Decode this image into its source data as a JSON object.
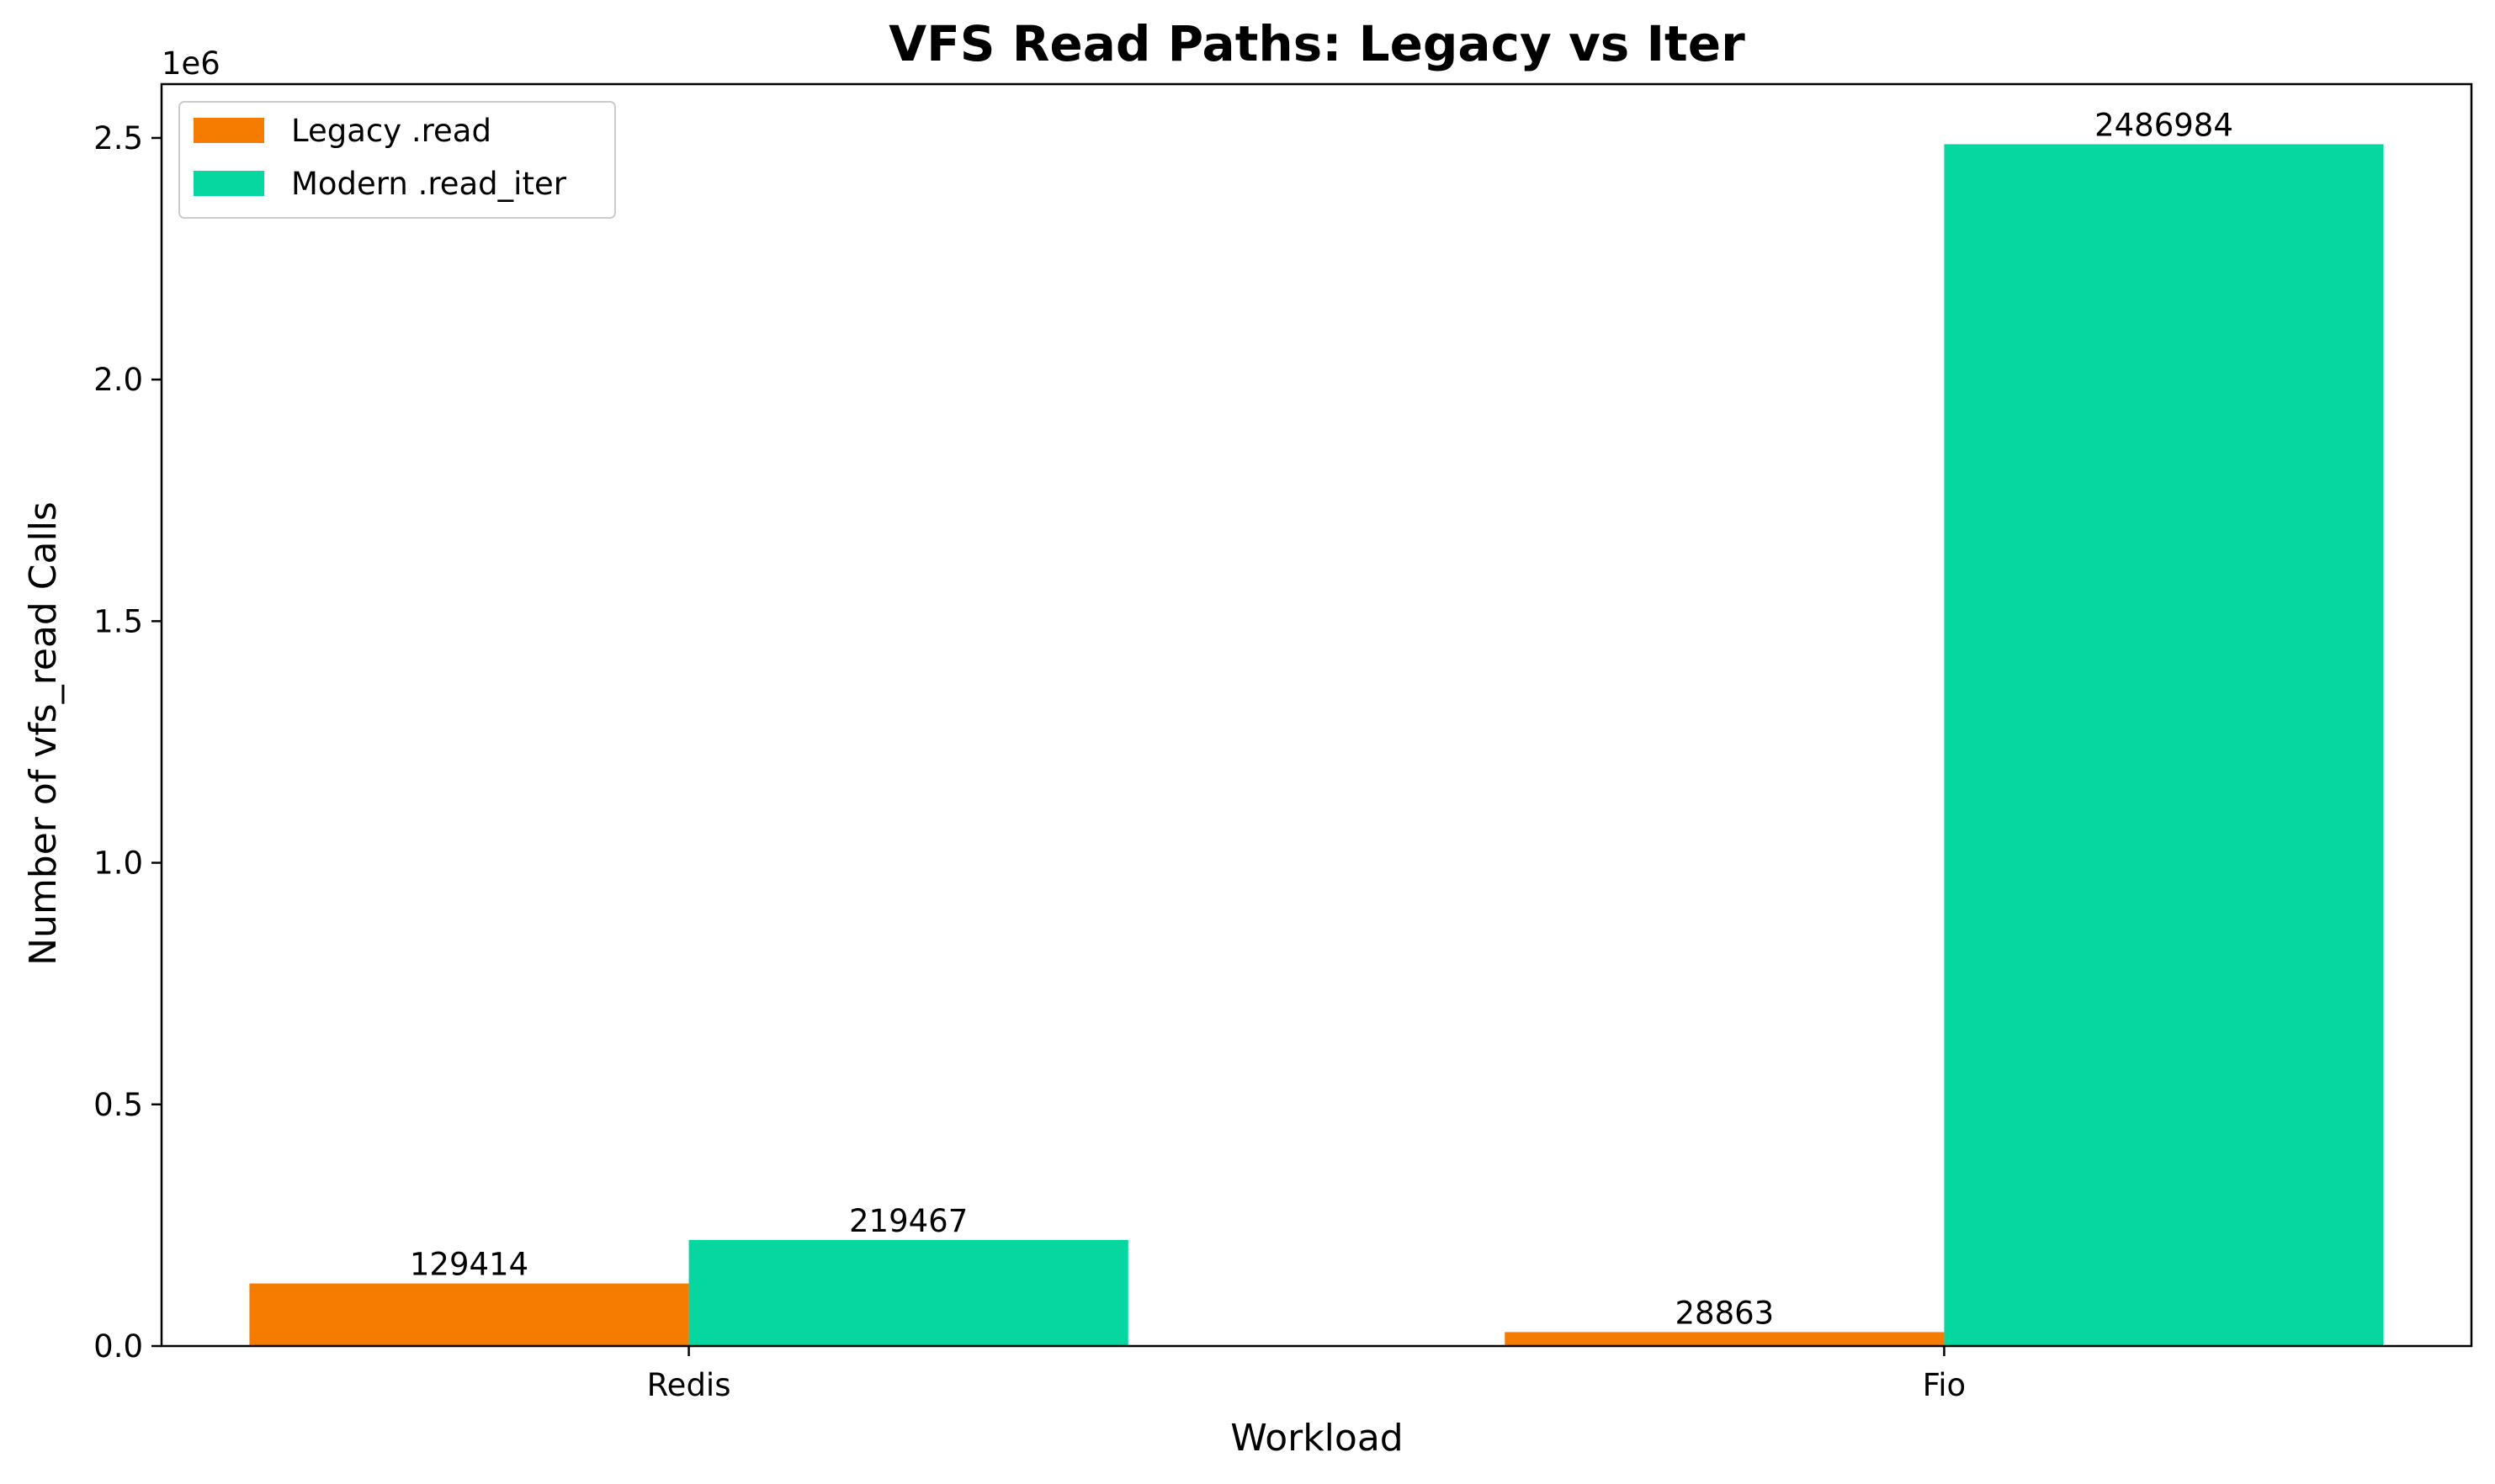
{
  "chart_data": {
    "type": "bar",
    "title": "VFS Read Paths: Legacy vs Iter",
    "xlabel": "Workload",
    "ylabel": "Number of vfs_read Calls",
    "y_offset_label": "1e6",
    "categories": [
      "Redis",
      "Fio"
    ],
    "series": [
      {
        "name": "Legacy .read",
        "color": "#f57c00",
        "values": [
          129414,
          28863
        ]
      },
      {
        "name": "Modern .read_iter",
        "color": "#06d6a0",
        "values": [
          219467,
          2486984
        ]
      }
    ],
    "ylim": [
      0,
      2611333
    ],
    "yticks": [
      0,
      500000,
      1000000,
      1500000,
      2000000,
      2500000
    ],
    "ytick_labels": [
      "0.0",
      "0.5",
      "1.0",
      "1.5",
      "2.0",
      "2.5"
    ],
    "grid": false,
    "legend_position": "top-left"
  }
}
